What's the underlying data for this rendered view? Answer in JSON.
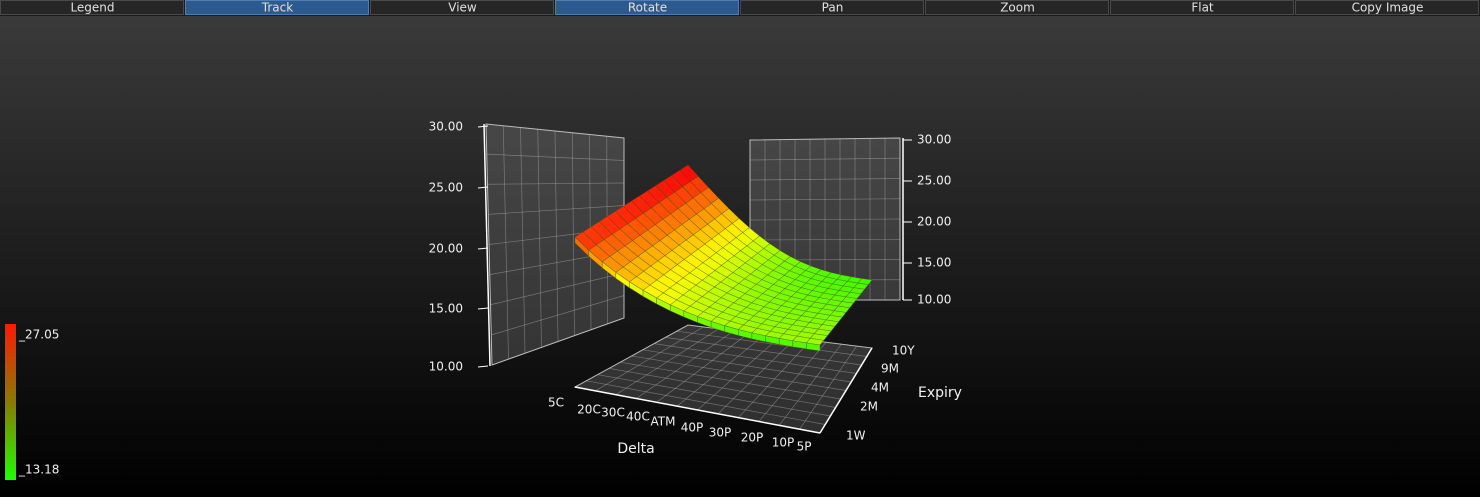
{
  "toolbar": {
    "buttons": [
      {
        "label": "Legend",
        "active": false
      },
      {
        "label": "Track",
        "active": true
      },
      {
        "label": "View",
        "active": false
      },
      {
        "label": "Rotate",
        "active": true
      },
      {
        "label": "Pan",
        "active": false
      },
      {
        "label": "Zoom",
        "active": false
      },
      {
        "label": "Flat",
        "active": false
      },
      {
        "label": "Copy Image",
        "active": false
      }
    ]
  },
  "legend": {
    "max": "_27.05",
    "min": "_13.18"
  },
  "plot": {
    "z_ticks_left": [
      "30.00",
      "25.00",
      "20.00",
      "15.00",
      "10.00"
    ],
    "z_ticks_right": [
      "30.00",
      "25.00",
      "20.00",
      "15.00",
      "10.00"
    ],
    "delta_ticks": [
      "5C",
      "20C",
      "30C",
      "40C",
      "ATM",
      "40P",
      "30P",
      "20P",
      "10P",
      "5P"
    ],
    "expiry_ticks": [
      "1W",
      "2M",
      "4M",
      "9M",
      "10Y"
    ],
    "delta_label": "Delta",
    "expiry_label": "Expiry"
  }
}
